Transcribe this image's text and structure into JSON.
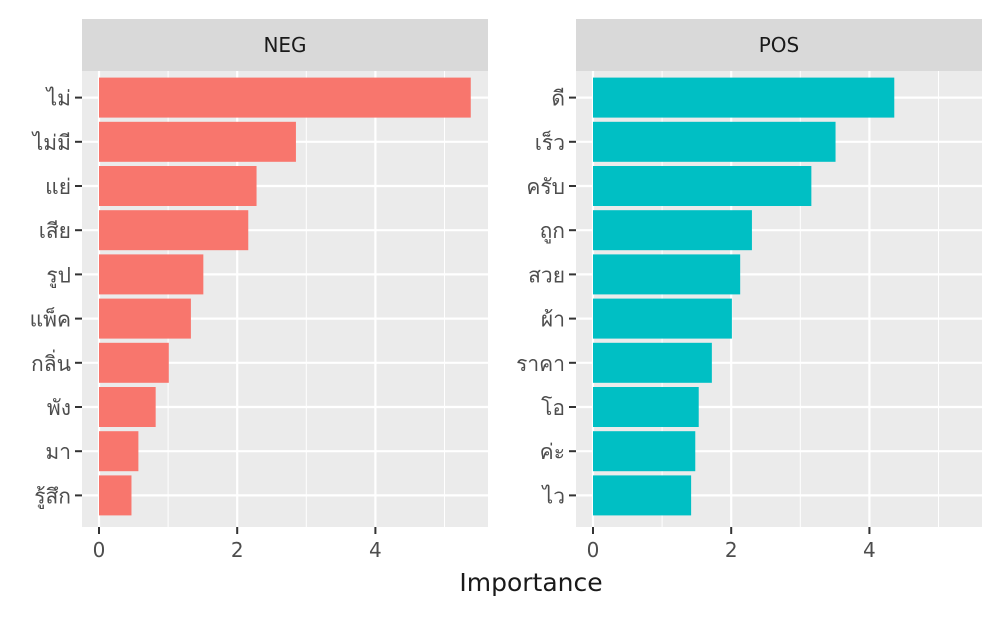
{
  "chart_data": {
    "type": "bar",
    "orientation": "horizontal",
    "xlabel": "Importance",
    "ylabel": "",
    "xlim": [
      0,
      5.6
    ],
    "x_ticks": [
      0,
      2,
      4
    ],
    "grid": true,
    "legend": "none",
    "panels": [
      {
        "name": "NEG",
        "color": "#F8766D",
        "categories": [
          "ไม่",
          "ไม่มี",
          "แย่",
          "เสีย",
          "รูป",
          "แพ็ค",
          "กลิ่น",
          "พัง",
          "มา",
          "รู้สึก"
        ],
        "values": [
          5.38,
          2.85,
          2.28,
          2.16,
          1.51,
          1.33,
          1.01,
          0.82,
          0.57,
          0.47
        ]
      },
      {
        "name": "POS",
        "color": "#00BFC4",
        "categories": [
          "ดี",
          "เร็ว",
          "ครับ",
          "ถูก",
          "สวย",
          "ผ้า",
          "ราคา",
          "โอ",
          "ค่ะ",
          "ไว"
        ],
        "values": [
          4.36,
          3.51,
          3.16,
          2.3,
          2.13,
          2.01,
          1.72,
          1.53,
          1.48,
          1.42
        ]
      }
    ]
  }
}
